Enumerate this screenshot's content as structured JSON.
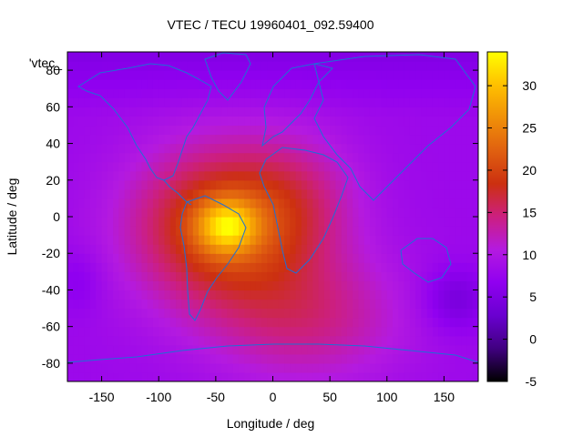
{
  "chart_data": {
    "type": "heatmap",
    "title": "VTEC / TECU 19960401_092.59400",
    "xlabel": "Longitude / deg",
    "ylabel": "Latitude / deg",
    "key_label": "'vtec_",
    "xlim": [
      -180,
      180
    ],
    "ylim": [
      -90,
      90
    ],
    "x_ticks": [
      -150,
      -100,
      -50,
      0,
      50,
      100,
      150
    ],
    "y_ticks": [
      -80,
      -60,
      -40,
      -20,
      0,
      20,
      40,
      60,
      80
    ],
    "colorbar": {
      "range": [
        -5,
        34
      ],
      "ticks": [
        -5,
        0,
        5,
        10,
        15,
        20,
        25,
        30
      ],
      "palette": [
        "#000000",
        "#400080",
        "#6a00d0",
        "#9000f0",
        "#b41ae0",
        "#cc1f80",
        "#cc3010",
        "#e06010",
        "#f09008",
        "#ffc000",
        "#ffff00"
      ]
    },
    "peak": {
      "lon": -45,
      "lat": -5,
      "value": 33
    },
    "grid": false,
    "legend": "top-left"
  }
}
